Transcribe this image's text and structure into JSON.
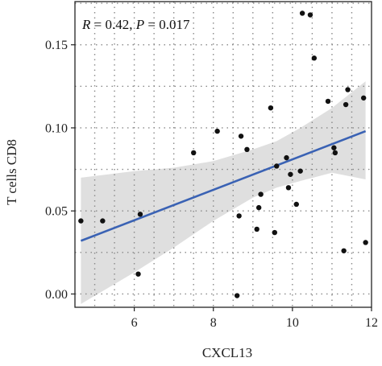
{
  "chart_data": {
    "type": "scatter",
    "xlabel": "CXCL13",
    "ylabel": "T cells CD8",
    "xlim": [
      4.5,
      12.0
    ],
    "ylim": [
      -0.008,
      0.176
    ],
    "xticks": [
      6,
      8,
      10,
      12
    ],
    "xtick_labels": [
      "6",
      "8",
      "10",
      "12"
    ],
    "yticks": [
      0.0,
      0.05,
      0.1,
      0.15
    ],
    "ytick_labels": [
      "0.00",
      "0.05",
      "0.10",
      "0.15"
    ],
    "grid": true,
    "annotation": {
      "r_label": "R",
      "r_value": " = 0.42, ",
      "p_label": "P",
      "p_value": " = 0.017"
    },
    "regression": {
      "x": [
        4.65,
        11.85
      ],
      "y": [
        0.032,
        0.098
      ]
    },
    "confidence_band": {
      "x": [
        4.65,
        6.0,
        7.0,
        8.0,
        9.0,
        9.6,
        10.2,
        11.0,
        11.85
      ],
      "upper": [
        0.07,
        0.074,
        0.076,
        0.08,
        0.087,
        0.092,
        0.1,
        0.112,
        0.128
      ],
      "lower": [
        -0.006,
        0.013,
        0.028,
        0.044,
        0.058,
        0.064,
        0.068,
        0.073,
        0.069
      ]
    },
    "points": {
      "x": [
        4.65,
        5.2,
        6.1,
        6.15,
        7.5,
        8.1,
        8.6,
        8.65,
        8.7,
        8.85,
        9.1,
        9.15,
        9.2,
        9.45,
        9.55,
        9.6,
        9.85,
        9.9,
        9.95,
        10.1,
        10.2,
        10.25,
        10.45,
        10.55,
        10.9,
        11.05,
        11.08,
        11.3,
        11.35,
        11.4,
        11.8,
        11.85
      ],
      "y": [
        0.044,
        0.044,
        0.012,
        0.048,
        0.085,
        0.098,
        -0.001,
        0.047,
        0.095,
        0.087,
        0.039,
        0.052,
        0.06,
        0.112,
        0.037,
        0.077,
        0.082,
        0.064,
        0.072,
        0.054,
        0.074,
        0.169,
        0.168,
        0.142,
        0.116,
        0.088,
        0.085,
        0.026,
        0.114,
        0.123,
        0.118,
        0.031
      ]
    },
    "colors": {
      "points": "#111111",
      "line": "#3a62b4",
      "band": "#d9d9d9",
      "grid": "#8a8a8a",
      "frame": "#222222"
    }
  }
}
